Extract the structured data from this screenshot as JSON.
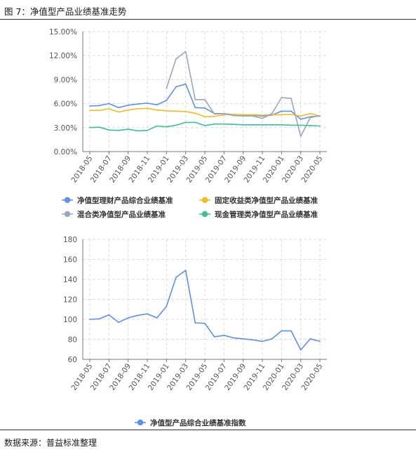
{
  "header": {
    "figure_title": "图 7：净值型产品业绩基准走势"
  },
  "footer": {
    "source": "数据来源：普益标准整理"
  },
  "chart_data": [
    {
      "type": "line",
      "title": "",
      "xlabel": "",
      "ylabel": "",
      "x": [
        "2018-05",
        "2018-06",
        "2018-07",
        "2018-08",
        "2018-09",
        "2018-10",
        "2018-11",
        "2018-12",
        "2019-01",
        "2019-02",
        "2019-03",
        "2019-04",
        "2019-05",
        "2019-06",
        "2019-07",
        "2019-08",
        "2019-09",
        "2019-10",
        "2019-11",
        "2019-12",
        "2020-01",
        "2020-02",
        "2020-03",
        "2020-04",
        "2020-05"
      ],
      "x_tick_labels": [
        "2018-05",
        "2018-07",
        "2018-09",
        "2018-11",
        "2019-01",
        "2019-03",
        "2019-05",
        "2019-07",
        "2019-09",
        "2019-11",
        "2020-01",
        "2020-03",
        "2020-05"
      ],
      "ylim": [
        0,
        15
      ],
      "y_ticks": [
        "0.00%",
        "3.00%",
        "6.00%",
        "9.00%",
        "12.00%",
        "15.00%"
      ],
      "grid": true,
      "legend_position": "bottom",
      "series": [
        {
          "name": "净值型理财产品综合业绩基准",
          "color": "#5b8ff9",
          "values": [
            5.7,
            5.75,
            6.0,
            5.5,
            5.8,
            5.95,
            6.05,
            5.85,
            6.4,
            8.1,
            8.45,
            5.5,
            5.45,
            4.75,
            4.75,
            4.6,
            4.6,
            4.55,
            4.45,
            4.55,
            5.05,
            5.05,
            4.05,
            4.35,
            4.45
          ]
        },
        {
          "name": "固定收益类净值型产品业绩基准",
          "color": "#f6bd16",
          "values": [
            5.15,
            5.15,
            5.35,
            4.95,
            5.2,
            5.35,
            5.4,
            5.2,
            5.1,
            5.05,
            5.0,
            4.8,
            4.35,
            4.4,
            4.6,
            4.65,
            4.6,
            4.6,
            4.55,
            4.6,
            4.6,
            4.65,
            4.45,
            4.75,
            4.45
          ]
        },
        {
          "name": "混合类净值型产品业绩基准",
          "color": "#9aa6bf",
          "values": [
            null,
            null,
            null,
            null,
            null,
            null,
            null,
            null,
            7.9,
            11.6,
            12.5,
            6.5,
            6.5,
            4.7,
            4.75,
            4.5,
            4.45,
            4.45,
            4.15,
            4.75,
            6.75,
            6.65,
            1.9,
            4.25,
            4.5
          ]
        },
        {
          "name": "现金管理类净值型产品业绩基准",
          "color": "#36c58f",
          "values": [
            3.0,
            3.05,
            2.7,
            2.65,
            2.8,
            2.6,
            2.65,
            3.2,
            3.1,
            3.3,
            3.65,
            3.65,
            3.25,
            3.45,
            3.45,
            3.4,
            3.35,
            3.35,
            3.35,
            3.35,
            3.35,
            3.3,
            3.3,
            3.25,
            3.2
          ]
        }
      ]
    },
    {
      "type": "line",
      "title": "",
      "xlabel": "",
      "ylabel": "",
      "x": [
        "2018-05",
        "2018-06",
        "2018-07",
        "2018-08",
        "2018-09",
        "2018-10",
        "2018-11",
        "2018-12",
        "2019-01",
        "2019-02",
        "2019-03",
        "2019-04",
        "2019-05",
        "2019-06",
        "2019-07",
        "2019-08",
        "2019-09",
        "2019-10",
        "2019-11",
        "2019-12",
        "2020-01",
        "2020-02",
        "2020-03",
        "2020-04",
        "2020-05"
      ],
      "x_tick_labels": [
        "2018-05",
        "2018-07",
        "2018-09",
        "2018-11",
        "2019-01",
        "2019-03",
        "2019-05",
        "2019-07",
        "2019-09",
        "2019-11",
        "2020-01",
        "2020-03",
        "2020-05"
      ],
      "ylim": [
        60,
        180
      ],
      "y_ticks": [
        "60",
        "80",
        "100",
        "120",
        "140",
        "160",
        "180"
      ],
      "grid": true,
      "legend_position": "bottom",
      "series": [
        {
          "name": "净值型产品综合业绩基准指数",
          "color": "#5b8ff9",
          "values": [
            100,
            100.5,
            104.5,
            97,
            101.5,
            104,
            105.5,
            101.5,
            113,
            142,
            149,
            96.5,
            96,
            82.5,
            84,
            81.5,
            80.5,
            79.5,
            78,
            80.5,
            88.5,
            88.5,
            69.5,
            80.5,
            78
          ]
        }
      ]
    }
  ]
}
